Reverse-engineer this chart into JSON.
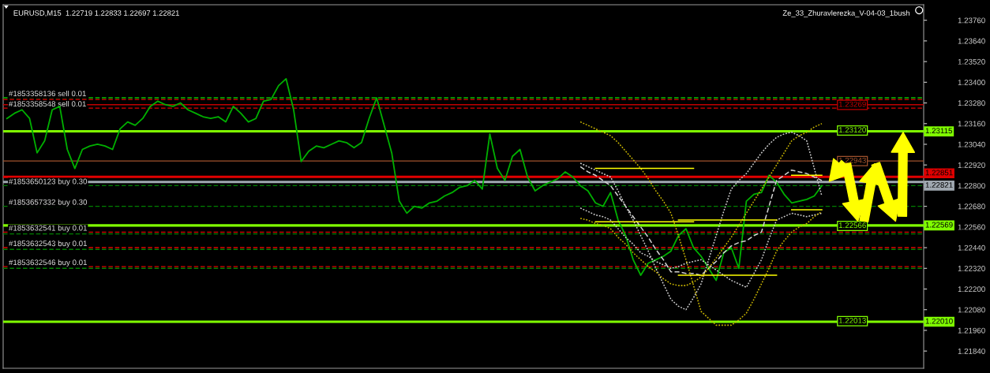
{
  "chart_data": {
    "type": "line",
    "title": "EURUSD,M15  1.22719 1.22833 1.22697 1.22821",
    "subtitle": "Ze_33_Zhuravlerezka_V-04-03_1bush",
    "categories": [
      null,
      null,
      null,
      null,
      null,
      null,
      null,
      null,
      null,
      null,
      null,
      null,
      null,
      null,
      null,
      null,
      null,
      null,
      null,
      null,
      null,
      null,
      null,
      null,
      null,
      null,
      null,
      null,
      null,
      null,
      null,
      null,
      null,
      null,
      null,
      null,
      null,
      null,
      null,
      null,
      null,
      null,
      null,
      null,
      null,
      null,
      null,
      null,
      null,
      null,
      null,
      null,
      null,
      null,
      null,
      null,
      null,
      null,
      null,
      null,
      null,
      null,
      null,
      null,
      null,
      null,
      null,
      null,
      null,
      null,
      null,
      null,
      null,
      null,
      null,
      null,
      null,
      null,
      null,
      null,
      null,
      null,
      null,
      null,
      null,
      null,
      null,
      null,
      null,
      null,
      null,
      null,
      null,
      null,
      null,
      null,
      null,
      null,
      null,
      null,
      null,
      null,
      null,
      null,
      null,
      null,
      null,
      null,
      null,
      null,
      null,
      null,
      null,
      null,
      null,
      null,
      null,
      null,
      null,
      null,
      null,
      null
    ],
    "series": [
      {
        "color": "#00b000",
        "line_style": "solid",
        "values": [
          1.2319,
          1.2322,
          1.2324,
          1.2319,
          1.2299,
          1.2306,
          1.2324,
          1.2326,
          1.2301,
          1.229,
          1.2301,
          1.2303,
          1.2304,
          1.2303,
          1.2301,
          1.2313,
          1.2317,
          1.2315,
          1.2319,
          1.2326,
          1.2329,
          1.2327,
          1.2326,
          1.2328,
          1.2324,
          1.2322,
          1.232,
          1.2319,
          1.232,
          1.2317,
          1.2326,
          1.2322,
          1.2317,
          1.2319,
          1.2329,
          1.233,
          1.2338,
          1.2342,
          1.2324,
          1.2294,
          1.23,
          1.2303,
          1.2302,
          1.2304,
          1.2306,
          1.2305,
          1.2302,
          1.2305,
          1.2319,
          1.2331,
          1.2315,
          1.2299,
          1.2271,
          1.2264,
          1.2268,
          1.2267,
          1.227,
          1.2271,
          1.2274,
          1.2276,
          1.2279,
          1.228,
          1.2283,
          1.2278,
          1.231,
          1.229,
          1.2283,
          1.2297,
          1.2301,
          1.2285,
          1.2277,
          1.228,
          1.2282,
          1.2284,
          1.2288,
          1.2285,
          1.228,
          1.2277,
          1.227,
          1.2268,
          1.2276,
          1.226,
          1.2251,
          1.2237,
          1.2228,
          1.2235,
          1.2237,
          1.2239,
          1.2242,
          1.2251,
          1.2255,
          1.2244,
          1.2239,
          1.2232,
          1.2225,
          1.2241,
          1.2244,
          1.2232,
          1.2271,
          1.2275,
          1.2276,
          1.2286,
          1.2282,
          1.2275,
          1.227,
          1.2271,
          1.2272,
          1.2274,
          1.228,
          null,
          null,
          null,
          null,
          null,
          null,
          null,
          null,
          null,
          null,
          null,
          null,
          null
        ]
      },
      {
        "color": "#d0d0d0",
        "line_style": "dotted",
        "values": [
          null,
          null,
          null,
          null,
          null,
          null,
          null,
          null,
          null,
          null,
          null,
          null,
          null,
          null,
          null,
          null,
          null,
          null,
          null,
          null,
          null,
          null,
          null,
          null,
          null,
          null,
          null,
          null,
          null,
          null,
          null,
          null,
          null,
          null,
          null,
          null,
          null,
          null,
          null,
          null,
          null,
          null,
          null,
          null,
          null,
          null,
          null,
          null,
          null,
          null,
          null,
          null,
          null,
          null,
          null,
          null,
          null,
          null,
          null,
          null,
          null,
          null,
          null,
          null,
          null,
          null,
          null,
          null,
          null,
          null,
          null,
          null,
          null,
          null,
          null,
          null,
          1.2293,
          1.2291,
          1.2289,
          1.2287,
          1.2285,
          1.2277,
          1.2268,
          1.226,
          1.2251,
          1.2242,
          1.2232,
          1.2223,
          1.2214,
          1.221,
          1.2208,
          1.2215,
          1.2223,
          1.2237,
          1.2251,
          1.2265,
          1.2278,
          1.2283,
          1.2287,
          1.2293,
          1.2299,
          1.2304,
          1.2308,
          1.231,
          1.2311,
          1.2309,
          1.2306,
          1.229,
          1.2274,
          null,
          null,
          null,
          null,
          null,
          null,
          null,
          null,
          null,
          null,
          null,
          null,
          null
        ]
      },
      {
        "color": "#d0d0d0",
        "line_style": "dotted",
        "values": [
          null,
          null,
          null,
          null,
          null,
          null,
          null,
          null,
          null,
          null,
          null,
          null,
          null,
          null,
          null,
          null,
          null,
          null,
          null,
          null,
          null,
          null,
          null,
          null,
          null,
          null,
          null,
          null,
          null,
          null,
          null,
          null,
          null,
          null,
          null,
          null,
          null,
          null,
          null,
          null,
          null,
          null,
          null,
          null,
          null,
          null,
          null,
          null,
          null,
          null,
          null,
          null,
          null,
          null,
          null,
          null,
          null,
          null,
          null,
          null,
          null,
          null,
          null,
          null,
          null,
          null,
          null,
          null,
          null,
          null,
          null,
          null,
          null,
          null,
          null,
          null,
          1.2267,
          1.2265,
          1.2263,
          1.2262,
          1.226,
          1.2255,
          1.225,
          1.2246,
          1.2241,
          1.2239,
          1.2236,
          1.2234,
          1.2232,
          1.2233,
          1.2235,
          1.2236,
          1.2237,
          1.2234,
          1.2231,
          1.2228,
          1.2225,
          1.2223,
          1.2221,
          1.2229,
          1.2237,
          1.2249,
          1.226,
          1.2262,
          1.2264,
          1.2263,
          1.2262,
          1.2263,
          1.2264,
          null,
          null,
          null,
          null,
          null,
          null,
          null,
          null,
          null,
          null,
          null,
          null,
          null
        ]
      },
      {
        "color": "#d0d0d0",
        "line_style": "dashed",
        "values": [
          null,
          null,
          null,
          null,
          null,
          null,
          null,
          null,
          null,
          null,
          null,
          null,
          null,
          null,
          null,
          null,
          null,
          null,
          null,
          null,
          null,
          null,
          null,
          null,
          null,
          null,
          null,
          null,
          null,
          null,
          null,
          null,
          null,
          null,
          null,
          null,
          null,
          null,
          null,
          null,
          null,
          null,
          null,
          null,
          null,
          null,
          null,
          null,
          null,
          null,
          null,
          null,
          null,
          null,
          null,
          null,
          null,
          null,
          null,
          null,
          null,
          null,
          null,
          null,
          null,
          null,
          null,
          null,
          null,
          null,
          null,
          null,
          null,
          null,
          null,
          null,
          1.2291,
          1.2288,
          1.2286,
          1.2283,
          1.228,
          1.2274,
          1.2268,
          1.2262,
          1.2256,
          1.225,
          1.2243,
          1.2237,
          1.223,
          1.223,
          1.2229,
          1.2229,
          1.2228,
          1.2232,
          1.2236,
          1.2241,
          1.2245,
          1.2247,
          1.2248,
          1.2251,
          1.2253,
          1.2268,
          1.2283,
          1.2286,
          1.2289,
          1.2288,
          1.2287,
          1.2285,
          1.2283,
          null,
          null,
          null,
          null,
          null,
          null,
          null,
          null,
          null,
          null,
          null,
          null,
          null
        ]
      },
      {
        "color": "#c8b400",
        "line_style": "dotted",
        "values": [
          null,
          null,
          null,
          null,
          null,
          null,
          null,
          null,
          null,
          null,
          null,
          null,
          null,
          null,
          null,
          null,
          null,
          null,
          null,
          null,
          null,
          null,
          null,
          null,
          null,
          null,
          null,
          null,
          null,
          null,
          null,
          null,
          null,
          null,
          null,
          null,
          null,
          null,
          null,
          null,
          null,
          null,
          null,
          null,
          null,
          null,
          null,
          null,
          null,
          null,
          null,
          null,
          null,
          null,
          null,
          null,
          null,
          null,
          null,
          null,
          null,
          null,
          null,
          null,
          null,
          null,
          null,
          null,
          null,
          null,
          null,
          null,
          null,
          null,
          null,
          null,
          1.2317,
          1.2315,
          1.2313,
          1.2311,
          1.2309,
          1.2305,
          1.23,
          1.2295,
          1.229,
          1.2284,
          1.2277,
          1.2271,
          1.2264,
          1.2251,
          1.2237,
          1.2222,
          1.2207,
          1.2203,
          1.2199,
          1.2199,
          1.2199,
          1.2202,
          1.2206,
          1.2214,
          1.2223,
          1.2232,
          1.2242,
          1.2248,
          1.2253,
          1.2256,
          1.2258,
          1.2262,
          1.2265,
          null,
          null,
          null,
          null,
          null,
          null,
          null,
          null,
          null,
          null,
          null,
          null,
          null
        ]
      },
      {
        "color": "#c8b400",
        "line_style": "dotted",
        "values": [
          null,
          null,
          null,
          null,
          null,
          null,
          null,
          null,
          null,
          null,
          null,
          null,
          null,
          null,
          null,
          null,
          null,
          null,
          null,
          null,
          null,
          null,
          null,
          null,
          null,
          null,
          null,
          null,
          null,
          null,
          null,
          null,
          null,
          null,
          null,
          null,
          null,
          null,
          null,
          null,
          null,
          null,
          null,
          null,
          null,
          null,
          null,
          null,
          null,
          null,
          null,
          null,
          null,
          null,
          null,
          null,
          null,
          null,
          null,
          null,
          null,
          null,
          null,
          null,
          null,
          null,
          null,
          null,
          null,
          null,
          null,
          null,
          null,
          null,
          null,
          null,
          1.2261,
          1.226,
          1.2258,
          1.2257,
          1.2255,
          1.225,
          1.2246,
          1.2241,
          1.2237,
          1.2233,
          1.223,
          1.2226,
          1.2223,
          1.2222,
          1.2222,
          1.2224,
          1.2227,
          1.2232,
          1.2238,
          1.2244,
          1.225,
          1.2257,
          1.2264,
          1.2271,
          1.2278,
          1.2285,
          1.2292,
          1.2299,
          1.2306,
          1.2309,
          1.2311,
          1.2314,
          1.2316,
          null,
          null,
          null,
          null,
          null,
          null,
          null,
          null,
          null,
          null,
          null,
          null,
          null
        ]
      },
      {
        "color": "#ffff00",
        "line_style": "solid",
        "values": [
          null,
          null,
          null,
          null,
          null,
          null,
          null,
          null,
          null,
          null,
          null,
          null,
          null,
          null,
          null,
          null,
          null,
          null,
          null,
          null,
          null,
          null,
          null,
          null,
          null,
          null,
          null,
          null,
          null,
          null,
          null,
          null,
          null,
          null,
          null,
          null,
          null,
          null,
          null,
          null,
          null,
          null,
          null,
          null,
          null,
          null,
          null,
          null,
          null,
          null,
          null,
          null,
          null,
          null,
          null,
          null,
          null,
          null,
          null,
          null,
          null,
          null,
          null,
          null,
          null,
          null,
          null,
          null,
          null,
          null,
          null,
          null,
          null,
          null,
          null,
          null,
          null,
          null,
          1.229,
          1.229,
          1.229,
          1.229,
          1.229,
          1.229,
          1.229,
          1.229,
          1.229,
          1.229,
          1.229,
          1.229,
          1.229,
          1.229,
          null,
          null,
          null,
          null,
          null,
          null,
          null,
          null,
          null,
          null,
          null,
          null,
          null,
          null,
          null,
          null,
          null,
          null,
          null,
          null,
          null,
          null,
          null,
          null,
          null,
          null,
          null,
          null,
          null,
          null
        ]
      },
      {
        "color": "#ffff00",
        "line_style": "solid",
        "values": [
          null,
          null,
          null,
          null,
          null,
          null,
          null,
          null,
          null,
          null,
          null,
          null,
          null,
          null,
          null,
          null,
          null,
          null,
          null,
          null,
          null,
          null,
          null,
          null,
          null,
          null,
          null,
          null,
          null,
          null,
          null,
          null,
          null,
          null,
          null,
          null,
          null,
          null,
          null,
          null,
          null,
          null,
          null,
          null,
          null,
          null,
          null,
          null,
          null,
          null,
          null,
          null,
          null,
          null,
          null,
          null,
          null,
          null,
          null,
          null,
          null,
          null,
          null,
          null,
          null,
          null,
          null,
          null,
          null,
          null,
          null,
          null,
          null,
          null,
          null,
          null,
          null,
          null,
          1.2259,
          1.2259,
          1.2259,
          1.2259,
          1.2259,
          1.2259,
          1.2259,
          1.2259,
          1.2259,
          1.2259,
          1.2259,
          1.2259,
          1.2259,
          1.2259,
          null,
          null,
          null,
          null,
          null,
          null,
          null,
          null,
          null,
          null,
          null,
          null,
          null,
          null,
          null,
          null,
          null,
          null,
          null,
          null,
          null,
          null,
          null,
          null,
          null,
          null,
          null,
          null,
          null,
          null
        ]
      },
      {
        "color": "#ffff00",
        "line_style": "solid",
        "values": [
          null,
          null,
          null,
          null,
          null,
          null,
          null,
          null,
          null,
          null,
          null,
          null,
          null,
          null,
          null,
          null,
          null,
          null,
          null,
          null,
          null,
          null,
          null,
          null,
          null,
          null,
          null,
          null,
          null,
          null,
          null,
          null,
          null,
          null,
          null,
          null,
          null,
          null,
          null,
          null,
          null,
          null,
          null,
          null,
          null,
          null,
          null,
          null,
          null,
          null,
          null,
          null,
          null,
          null,
          null,
          null,
          null,
          null,
          null,
          null,
          null,
          null,
          null,
          null,
          null,
          null,
          null,
          null,
          null,
          null,
          null,
          null,
          null,
          null,
          null,
          null,
          null,
          null,
          null,
          null,
          null,
          null,
          null,
          null,
          null,
          null,
          null,
          null,
          null,
          1.226,
          1.226,
          1.226,
          1.226,
          1.226,
          1.226,
          1.226,
          1.226,
          1.226,
          1.226,
          1.226,
          1.226,
          1.226,
          1.226,
          null,
          null,
          null,
          null,
          null,
          null,
          null,
          null,
          null,
          null,
          null,
          null,
          null,
          null,
          null,
          null,
          null,
          null,
          null
        ]
      },
      {
        "color": "#ffff00",
        "line_style": "solid",
        "values": [
          null,
          null,
          null,
          null,
          null,
          null,
          null,
          null,
          null,
          null,
          null,
          null,
          null,
          null,
          null,
          null,
          null,
          null,
          null,
          null,
          null,
          null,
          null,
          null,
          null,
          null,
          null,
          null,
          null,
          null,
          null,
          null,
          null,
          null,
          null,
          null,
          null,
          null,
          null,
          null,
          null,
          null,
          null,
          null,
          null,
          null,
          null,
          null,
          null,
          null,
          null,
          null,
          null,
          null,
          null,
          null,
          null,
          null,
          null,
          null,
          null,
          null,
          null,
          null,
          null,
          null,
          null,
          null,
          null,
          null,
          null,
          null,
          null,
          null,
          null,
          null,
          null,
          null,
          null,
          null,
          null,
          null,
          null,
          null,
          null,
          null,
          null,
          null,
          null,
          1.2228,
          1.2228,
          1.2228,
          1.2228,
          1.2228,
          1.2228,
          1.2228,
          1.2228,
          1.2228,
          1.2228,
          1.2228,
          1.2228,
          1.2228,
          1.2228,
          null,
          null,
          null,
          null,
          null,
          null,
          null,
          null,
          null,
          null,
          null,
          null,
          null,
          null,
          null,
          null,
          null,
          null,
          null
        ]
      },
      {
        "color": "#ffff00",
        "line_style": "solid",
        "values": [
          null,
          null,
          null,
          null,
          null,
          null,
          null,
          null,
          null,
          null,
          null,
          null,
          null,
          null,
          null,
          null,
          null,
          null,
          null,
          null,
          null,
          null,
          null,
          null,
          null,
          null,
          null,
          null,
          null,
          null,
          null,
          null,
          null,
          null,
          null,
          null,
          null,
          null,
          null,
          null,
          null,
          null,
          null,
          null,
          null,
          null,
          null,
          null,
          null,
          null,
          null,
          null,
          null,
          null,
          null,
          null,
          null,
          null,
          null,
          null,
          null,
          null,
          null,
          null,
          null,
          null,
          null,
          null,
          null,
          null,
          null,
          null,
          null,
          null,
          null,
          null,
          null,
          null,
          null,
          null,
          null,
          null,
          null,
          null,
          null,
          null,
          null,
          null,
          null,
          null,
          null,
          null,
          null,
          null,
          null,
          null,
          null,
          null,
          null,
          null,
          null,
          null,
          null,
          null,
          1.2286,
          1.2286,
          1.2286,
          1.2286,
          1.2286,
          null,
          null,
          null,
          null,
          null,
          null,
          null,
          null,
          null,
          null,
          null,
          null,
          null
        ]
      },
      {
        "color": "#ffff00",
        "line_style": "solid",
        "values": [
          null,
          null,
          null,
          null,
          null,
          null,
          null,
          null,
          null,
          null,
          null,
          null,
          null,
          null,
          null,
          null,
          null,
          null,
          null,
          null,
          null,
          null,
          null,
          null,
          null,
          null,
          null,
          null,
          null,
          null,
          null,
          null,
          null,
          null,
          null,
          null,
          null,
          null,
          null,
          null,
          null,
          null,
          null,
          null,
          null,
          null,
          null,
          null,
          null,
          null,
          null,
          null,
          null,
          null,
          null,
          null,
          null,
          null,
          null,
          null,
          null,
          null,
          null,
          null,
          null,
          null,
          null,
          null,
          null,
          null,
          null,
          null,
          null,
          null,
          null,
          null,
          null,
          null,
          null,
          null,
          null,
          null,
          null,
          null,
          null,
          null,
          null,
          null,
          null,
          null,
          null,
          null,
          null,
          null,
          null,
          null,
          null,
          null,
          null,
          null,
          null,
          null,
          null,
          null,
          1.2266,
          1.2266,
          1.2266,
          1.2266,
          1.2266,
          null,
          null,
          null,
          null,
          null,
          null,
          null,
          null,
          null,
          null,
          null,
          null,
          null
        ]
      }
    ],
    "ylim": [
      1.2174,
      1.2385
    ],
    "yticks": [
      {
        "value": 1.2184,
        "label": "1.21840"
      },
      {
        "value": 1.2196,
        "label": "1.21960"
      },
      {
        "value": 1.2208,
        "label": "1.22080"
      },
      {
        "value": 1.222,
        "label": "1.22200"
      },
      {
        "value": 1.2232,
        "label": "1.22320"
      },
      {
        "value": 1.2244,
        "label": "1.22440"
      },
      {
        "value": 1.2256,
        "label": "1.22560"
      },
      {
        "value": 1.2268,
        "label": "1.22680"
      },
      {
        "value": 1.228,
        "label": "1.22800"
      },
      {
        "value": 1.2292,
        "label": "1.22920"
      },
      {
        "value": 1.2304,
        "label": "1.23040"
      },
      {
        "value": 1.2316,
        "label": "1.23160"
      },
      {
        "value": 1.2328,
        "label": "1.23280"
      },
      {
        "value": 1.234,
        "label": "1.23400"
      },
      {
        "value": 1.2352,
        "label": "1.23520"
      },
      {
        "value": 1.2364,
        "label": "1.23640"
      },
      {
        "value": 1.2376,
        "label": "1.23760"
      }
    ],
    "ref_lines": [
      {
        "axis": "y",
        "value": 1.2331,
        "label": "#1853358136 sell 0.01",
        "color": "#00c000",
        "line_style": "dashed"
      },
      {
        "axis": "y",
        "value": 1.233,
        "color": "#e00000",
        "line_style": "dashed"
      },
      {
        "axis": "y",
        "value": 1.2327,
        "color": "#c00000",
        "line_style": "solid"
      },
      {
        "axis": "y",
        "value": 1.2325,
        "label": "#1853358548 sell 0.01",
        "color": "#e00000",
        "line_style": "dashed"
      },
      {
        "axis": "y",
        "value": 1.23115,
        "label": "1.23115",
        "color": "#80ff00",
        "line_style": "solid"
      },
      {
        "axis": "y",
        "value": 1.22943,
        "color": "#a0522d",
        "line_style": "solid"
      },
      {
        "axis": "y",
        "value": 1.22851,
        "label": "1.22851",
        "color": "#e00000",
        "line_style": "solid"
      },
      {
        "axis": "y",
        "value": 1.22821,
        "label": "1.22821",
        "color": "#a0a8b0",
        "line_style": "solid"
      },
      {
        "axis": "y",
        "value": 1.228,
        "label": "#1853650123 buy 0.30",
        "color": "#008000",
        "line_style": "dashed"
      },
      {
        "axis": "y",
        "value": 1.2268,
        "label": "#1853657332 buy 0.30",
        "color": "#008000",
        "line_style": "dashed"
      },
      {
        "axis": "y",
        "value": 1.22569,
        "label": "1.22569",
        "color": "#80ff00",
        "line_style": "solid"
      },
      {
        "axis": "y",
        "value": 1.2253,
        "label": "#1853632541 buy 0.01",
        "color": "#e00000",
        "line_style": "dashed"
      },
      {
        "axis": "y",
        "value": 1.2252,
        "color": "#008000",
        "line_style": "dashed"
      },
      {
        "axis": "y",
        "value": 1.2244,
        "label": "#1853632543 buy 0.01",
        "color": "#e00000",
        "line_style": "dashed"
      },
      {
        "axis": "y",
        "value": 1.2243,
        "color": "#008000",
        "line_style": "dashed"
      },
      {
        "axis": "y",
        "value": 1.2233,
        "label": "#1853632546 buy 0.01",
        "color": "#e00000",
        "line_style": "dashed"
      },
      {
        "axis": "y",
        "value": 1.2232,
        "color": "#008000",
        "line_style": "dashed"
      },
      {
        "axis": "y",
        "value": 1.2201,
        "label": "1.22010",
        "color": "#80ff00",
        "line_style": "solid"
      }
    ],
    "annotations": [
      {
        "text": "1.23269",
        "y": 1.23269
      },
      {
        "text": "1.23120",
        "y": 1.2312
      },
      {
        "text": "1.22943",
        "y": 1.22943
      },
      {
        "text": "1.22566",
        "y": 1.22566
      },
      {
        "text": "1.22013",
        "y": 1.22013
      }
    ],
    "tick_labels": "y",
    "grid": false,
    "legend": false,
    "marker": "none"
  }
}
